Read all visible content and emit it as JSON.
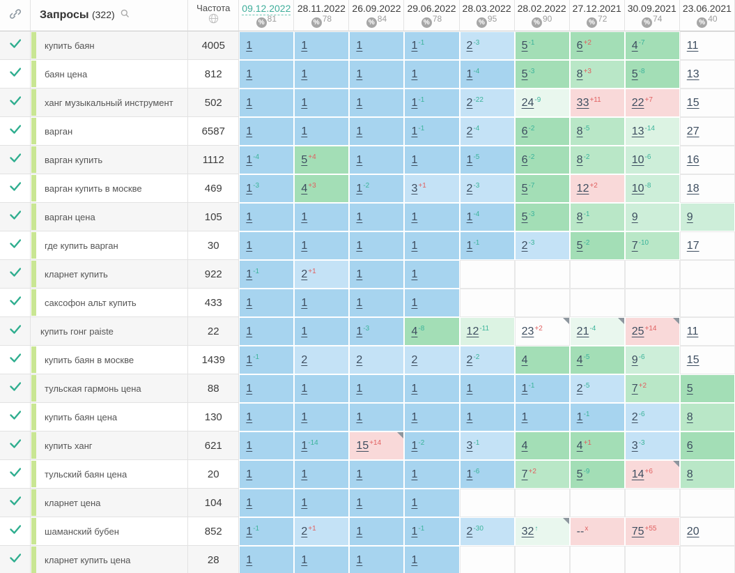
{
  "header": {
    "queries_label": "Запросы",
    "queries_count": "(322)",
    "frequency_label": "Частота",
    "icons": {
      "link": "link-icon",
      "search": "search-icon",
      "globe": "globe-icon",
      "percent": "percent-badge-icon",
      "check": "check-icon"
    },
    "dates": [
      {
        "date": "09.12.2022",
        "score": "81",
        "selected": true
      },
      {
        "date": "28.11.2022",
        "score": "78",
        "selected": false
      },
      {
        "date": "26.09.2022",
        "score": "84",
        "selected": false
      },
      {
        "date": "29.06.2022",
        "score": "78",
        "selected": false
      },
      {
        "date": "28.03.2022",
        "score": "95",
        "selected": false
      },
      {
        "date": "28.02.2022",
        "score": "90",
        "selected": false
      },
      {
        "date": "27.12.2021",
        "score": "72",
        "selected": false
      },
      {
        "date": "30.09.2021",
        "score": "74",
        "selected": false
      },
      {
        "date": "23.06.2021",
        "score": "40",
        "selected": false
      }
    ]
  },
  "palette": {
    "blue": "#a7d4ef",
    "lightblue": "#c4e2f6",
    "green": "#a3deb6",
    "green2": "#b9e7c7",
    "mint": "#cdeed9",
    "mint2": "#dcf3e3",
    "palemint": "#e9f7ee",
    "pink": "#f9d9d9",
    "white": "#fdfdfd",
    "empty": "#fdfdfd",
    "delta_good": "#3bb39a",
    "delta_bad": "#e05f5f",
    "selected_date": "#3fae9b",
    "check": "#2fae8f",
    "query_bar": "#c9e693"
  },
  "rows": [
    {
      "query": "купить баян",
      "freq": "4005",
      "bar": true,
      "cells": [
        {
          "v": "1",
          "bg": "blue"
        },
        {
          "v": "1",
          "bg": "blue"
        },
        {
          "v": "1",
          "bg": "blue"
        },
        {
          "v": "1",
          "d": "-1",
          "g": true,
          "bg": "blue"
        },
        {
          "v": "2",
          "d": "-3",
          "g": true,
          "bg": "lightblue"
        },
        {
          "v": "5",
          "d": "-1",
          "g": true,
          "bg": "green"
        },
        {
          "v": "6",
          "d": "+2",
          "g": false,
          "bg": "green"
        },
        {
          "v": "4",
          "d": "-7",
          "g": true,
          "bg": "green"
        },
        {
          "v": "11",
          "bg": "white"
        }
      ]
    },
    {
      "query": "баян цена",
      "freq": "812",
      "bar": true,
      "cells": [
        {
          "v": "1",
          "bg": "blue"
        },
        {
          "v": "1",
          "bg": "blue"
        },
        {
          "v": "1",
          "bg": "blue"
        },
        {
          "v": "1",
          "bg": "blue"
        },
        {
          "v": "1",
          "d": "-4",
          "g": true,
          "bg": "blue"
        },
        {
          "v": "5",
          "d": "-3",
          "g": true,
          "bg": "green"
        },
        {
          "v": "8",
          "d": "+3",
          "g": false,
          "bg": "green2"
        },
        {
          "v": "5",
          "d": "-8",
          "g": true,
          "bg": "green"
        },
        {
          "v": "13",
          "bg": "white"
        }
      ]
    },
    {
      "query": "ханг музыкальный инструмент",
      "freq": "502",
      "bar": true,
      "cells": [
        {
          "v": "1",
          "bg": "blue"
        },
        {
          "v": "1",
          "bg": "blue"
        },
        {
          "v": "1",
          "bg": "blue"
        },
        {
          "v": "1",
          "d": "-1",
          "g": true,
          "bg": "blue"
        },
        {
          "v": "2",
          "d": "-22",
          "g": true,
          "bg": "lightblue"
        },
        {
          "v": "24",
          "d": "-9",
          "g": true,
          "bg": "palemint"
        },
        {
          "v": "33",
          "d": "+11",
          "g": false,
          "bg": "pink"
        },
        {
          "v": "22",
          "d": "+7",
          "g": false,
          "bg": "pink"
        },
        {
          "v": "15",
          "bg": "white"
        }
      ]
    },
    {
      "query": "варган",
      "freq": "6587",
      "bar": true,
      "cells": [
        {
          "v": "1",
          "bg": "blue"
        },
        {
          "v": "1",
          "bg": "blue"
        },
        {
          "v": "1",
          "bg": "blue"
        },
        {
          "v": "1",
          "d": "-1",
          "g": true,
          "bg": "blue"
        },
        {
          "v": "2",
          "d": "-4",
          "g": true,
          "bg": "lightblue"
        },
        {
          "v": "6",
          "d": "-2",
          "g": true,
          "bg": "green"
        },
        {
          "v": "8",
          "d": "-5",
          "g": true,
          "bg": "green2"
        },
        {
          "v": "13",
          "d": "-14",
          "g": true,
          "bg": "mint2"
        },
        {
          "v": "27",
          "bg": "white"
        }
      ]
    },
    {
      "query": "варган купить",
      "freq": "1112",
      "bar": true,
      "cells": [
        {
          "v": "1",
          "d": "-4",
          "g": true,
          "bg": "blue"
        },
        {
          "v": "5",
          "d": "+4",
          "g": false,
          "bg": "green"
        },
        {
          "v": "1",
          "bg": "blue"
        },
        {
          "v": "1",
          "bg": "blue"
        },
        {
          "v": "1",
          "d": "-5",
          "g": true,
          "bg": "blue"
        },
        {
          "v": "6",
          "d": "-2",
          "g": true,
          "bg": "green"
        },
        {
          "v": "8",
          "d": "-2",
          "g": true,
          "bg": "green2"
        },
        {
          "v": "10",
          "d": "-6",
          "g": true,
          "bg": "mint"
        },
        {
          "v": "16",
          "bg": "white"
        }
      ]
    },
    {
      "query": "варган купить в москве",
      "freq": "469",
      "bar": true,
      "cells": [
        {
          "v": "1",
          "d": "-3",
          "g": true,
          "bg": "blue"
        },
        {
          "v": "4",
          "d": "+3",
          "g": false,
          "bg": "green"
        },
        {
          "v": "1",
          "d": "-2",
          "g": true,
          "bg": "blue"
        },
        {
          "v": "3",
          "d": "+1",
          "g": false,
          "bg": "lightblue"
        },
        {
          "v": "2",
          "d": "-3",
          "g": true,
          "bg": "lightblue"
        },
        {
          "v": "5",
          "d": "-7",
          "g": true,
          "bg": "green"
        },
        {
          "v": "12",
          "d": "+2",
          "g": false,
          "bg": "pink"
        },
        {
          "v": "10",
          "d": "-8",
          "g": true,
          "bg": "mint"
        },
        {
          "v": "18",
          "bg": "white"
        }
      ]
    },
    {
      "query": "варган цена",
      "freq": "105",
      "bar": true,
      "cells": [
        {
          "v": "1",
          "bg": "blue"
        },
        {
          "v": "1",
          "bg": "blue"
        },
        {
          "v": "1",
          "bg": "blue"
        },
        {
          "v": "1",
          "bg": "blue"
        },
        {
          "v": "1",
          "d": "-4",
          "g": true,
          "bg": "blue"
        },
        {
          "v": "5",
          "d": "-3",
          "g": true,
          "bg": "green"
        },
        {
          "v": "8",
          "d": "-1",
          "g": true,
          "bg": "green2"
        },
        {
          "v": "9",
          "bg": "mint"
        },
        {
          "v": "9",
          "bg": "mint"
        }
      ]
    },
    {
      "query": "где купить варган",
      "freq": "30",
      "bar": true,
      "cells": [
        {
          "v": "1",
          "bg": "blue"
        },
        {
          "v": "1",
          "bg": "blue"
        },
        {
          "v": "1",
          "bg": "blue"
        },
        {
          "v": "1",
          "bg": "blue"
        },
        {
          "v": "1",
          "d": "-1",
          "g": true,
          "bg": "blue"
        },
        {
          "v": "2",
          "d": "-3",
          "g": true,
          "bg": "lightblue"
        },
        {
          "v": "5",
          "d": "-2",
          "g": true,
          "bg": "green"
        },
        {
          "v": "7",
          "d": "-10",
          "g": true,
          "bg": "green2"
        },
        {
          "v": "17",
          "bg": "white"
        }
      ]
    },
    {
      "query": "кларнет купить",
      "freq": "922",
      "bar": true,
      "cells": [
        {
          "v": "1",
          "d": "-1",
          "g": true,
          "bg": "blue"
        },
        {
          "v": "2",
          "d": "+1",
          "g": false,
          "bg": "lightblue"
        },
        {
          "v": "1",
          "bg": "blue"
        },
        {
          "v": "1",
          "bg": "blue"
        },
        {
          "bg": "empty"
        },
        {
          "bg": "empty"
        },
        {
          "bg": "empty"
        },
        {
          "bg": "empty"
        },
        {
          "bg": "empty"
        }
      ]
    },
    {
      "query": "саксофон альт купить",
      "freq": "433",
      "bar": true,
      "cells": [
        {
          "v": "1",
          "bg": "blue"
        },
        {
          "v": "1",
          "bg": "blue"
        },
        {
          "v": "1",
          "bg": "blue"
        },
        {
          "v": "1",
          "bg": "blue"
        },
        {
          "bg": "empty"
        },
        {
          "bg": "empty"
        },
        {
          "bg": "empty"
        },
        {
          "bg": "empty"
        },
        {
          "bg": "empty"
        }
      ]
    },
    {
      "query": "купить гонг paiste",
      "freq": "22",
      "bar": false,
      "cells": [
        {
          "v": "1",
          "bg": "blue"
        },
        {
          "v": "1",
          "bg": "blue"
        },
        {
          "v": "1",
          "d": "-3",
          "g": true,
          "bg": "blue"
        },
        {
          "v": "4",
          "d": "-8",
          "g": true,
          "bg": "green"
        },
        {
          "v": "12",
          "d": "-11",
          "g": true,
          "bg": "mint2"
        },
        {
          "v": "23",
          "d": "+2",
          "g": false,
          "bg": "white",
          "tri": true
        },
        {
          "v": "21",
          "d": "-4",
          "g": true,
          "bg": "palemint",
          "tri": true
        },
        {
          "v": "25",
          "d": "+14",
          "g": false,
          "bg": "pink",
          "tri": true
        },
        {
          "v": "11",
          "bg": "white"
        }
      ]
    },
    {
      "query": "купить баян в москве",
      "freq": "1439",
      "bar": true,
      "cells": [
        {
          "v": "1",
          "d": "-1",
          "g": true,
          "bg": "blue"
        },
        {
          "v": "2",
          "bg": "lightblue"
        },
        {
          "v": "2",
          "bg": "lightblue"
        },
        {
          "v": "2",
          "bg": "lightblue"
        },
        {
          "v": "2",
          "d": "-2",
          "g": true,
          "bg": "lightblue"
        },
        {
          "v": "4",
          "bg": "green"
        },
        {
          "v": "4",
          "d": "-5",
          "g": true,
          "bg": "green"
        },
        {
          "v": "9",
          "d": "-6",
          "g": true,
          "bg": "mint"
        },
        {
          "v": "15",
          "bg": "white"
        }
      ]
    },
    {
      "query": "тульская гармонь цена",
      "freq": "88",
      "bar": true,
      "cells": [
        {
          "v": "1",
          "bg": "blue"
        },
        {
          "v": "1",
          "bg": "blue"
        },
        {
          "v": "1",
          "bg": "blue"
        },
        {
          "v": "1",
          "bg": "blue"
        },
        {
          "v": "1",
          "bg": "blue"
        },
        {
          "v": "1",
          "d": "-1",
          "g": true,
          "bg": "blue"
        },
        {
          "v": "2",
          "d": "-5",
          "g": true,
          "bg": "lightblue"
        },
        {
          "v": "7",
          "d": "+2",
          "g": false,
          "bg": "green2"
        },
        {
          "v": "5",
          "bg": "green"
        }
      ]
    },
    {
      "query": "купить баян цена",
      "freq": "130",
      "bar": true,
      "cells": [
        {
          "v": "1",
          "bg": "blue"
        },
        {
          "v": "1",
          "bg": "blue"
        },
        {
          "v": "1",
          "bg": "blue"
        },
        {
          "v": "1",
          "bg": "blue"
        },
        {
          "v": "1",
          "bg": "blue"
        },
        {
          "v": "1",
          "bg": "blue"
        },
        {
          "v": "1",
          "d": "-1",
          "g": true,
          "bg": "blue"
        },
        {
          "v": "2",
          "d": "-6",
          "g": true,
          "bg": "lightblue"
        },
        {
          "v": "8",
          "bg": "green2"
        }
      ]
    },
    {
      "query": "купить ханг",
      "freq": "621",
      "bar": true,
      "cells": [
        {
          "v": "1",
          "bg": "blue"
        },
        {
          "v": "1",
          "d": "-14",
          "g": true,
          "bg": "blue"
        },
        {
          "v": "15",
          "d": "+14",
          "g": false,
          "bg": "pink",
          "tri": true
        },
        {
          "v": "1",
          "d": "-2",
          "g": true,
          "bg": "blue"
        },
        {
          "v": "3",
          "d": "-1",
          "g": true,
          "bg": "lightblue"
        },
        {
          "v": "4",
          "bg": "green"
        },
        {
          "v": "4",
          "d": "+1",
          "g": false,
          "bg": "green"
        },
        {
          "v": "3",
          "d": "-3",
          "g": true,
          "bg": "lightblue"
        },
        {
          "v": "6",
          "bg": "green"
        }
      ]
    },
    {
      "query": "тульский баян цена",
      "freq": "20",
      "bar": true,
      "cells": [
        {
          "v": "1",
          "bg": "blue"
        },
        {
          "v": "1",
          "bg": "blue"
        },
        {
          "v": "1",
          "bg": "blue"
        },
        {
          "v": "1",
          "bg": "blue"
        },
        {
          "v": "1",
          "d": "-6",
          "g": true,
          "bg": "blue"
        },
        {
          "v": "7",
          "d": "+2",
          "g": false,
          "bg": "green2"
        },
        {
          "v": "5",
          "d": "-9",
          "g": true,
          "bg": "green"
        },
        {
          "v": "14",
          "d": "+6",
          "g": false,
          "bg": "pink",
          "tri": true
        },
        {
          "v": "8",
          "bg": "green2"
        }
      ]
    },
    {
      "query": "кларнет цена",
      "freq": "104",
      "bar": true,
      "cells": [
        {
          "v": "1",
          "bg": "blue"
        },
        {
          "v": "1",
          "bg": "blue"
        },
        {
          "v": "1",
          "bg": "blue"
        },
        {
          "v": "1",
          "bg": "blue"
        },
        {
          "bg": "empty"
        },
        {
          "bg": "empty"
        },
        {
          "bg": "empty"
        },
        {
          "bg": "empty"
        },
        {
          "bg": "empty"
        }
      ]
    },
    {
      "query": "шаманский бубен",
      "freq": "852",
      "bar": true,
      "cells": [
        {
          "v": "1",
          "d": "-1",
          "g": true,
          "bg": "blue"
        },
        {
          "v": "2",
          "d": "+1",
          "g": false,
          "bg": "lightblue"
        },
        {
          "v": "1",
          "bg": "blue"
        },
        {
          "v": "1",
          "d": "-1",
          "g": true,
          "bg": "blue"
        },
        {
          "v": "2",
          "d": "-30",
          "g": true,
          "bg": "lightblue"
        },
        {
          "v": "32",
          "d": "↑",
          "g": true,
          "bg": "palemint",
          "tri": true
        },
        {
          "v": "--",
          "d": "x",
          "g": false,
          "bg": "pink"
        },
        {
          "v": "75",
          "d": "+55",
          "g": false,
          "bg": "pink"
        },
        {
          "v": "20",
          "bg": "white"
        }
      ]
    },
    {
      "query": "кларнет купить цена",
      "freq": "28",
      "bar": true,
      "cells": [
        {
          "v": "1",
          "bg": "blue"
        },
        {
          "v": "1",
          "bg": "blue"
        },
        {
          "v": "1",
          "bg": "blue"
        },
        {
          "v": "1",
          "bg": "blue"
        },
        {
          "bg": "empty"
        },
        {
          "bg": "empty"
        },
        {
          "bg": "empty"
        },
        {
          "bg": "empty"
        },
        {
          "bg": "empty"
        }
      ]
    }
  ]
}
